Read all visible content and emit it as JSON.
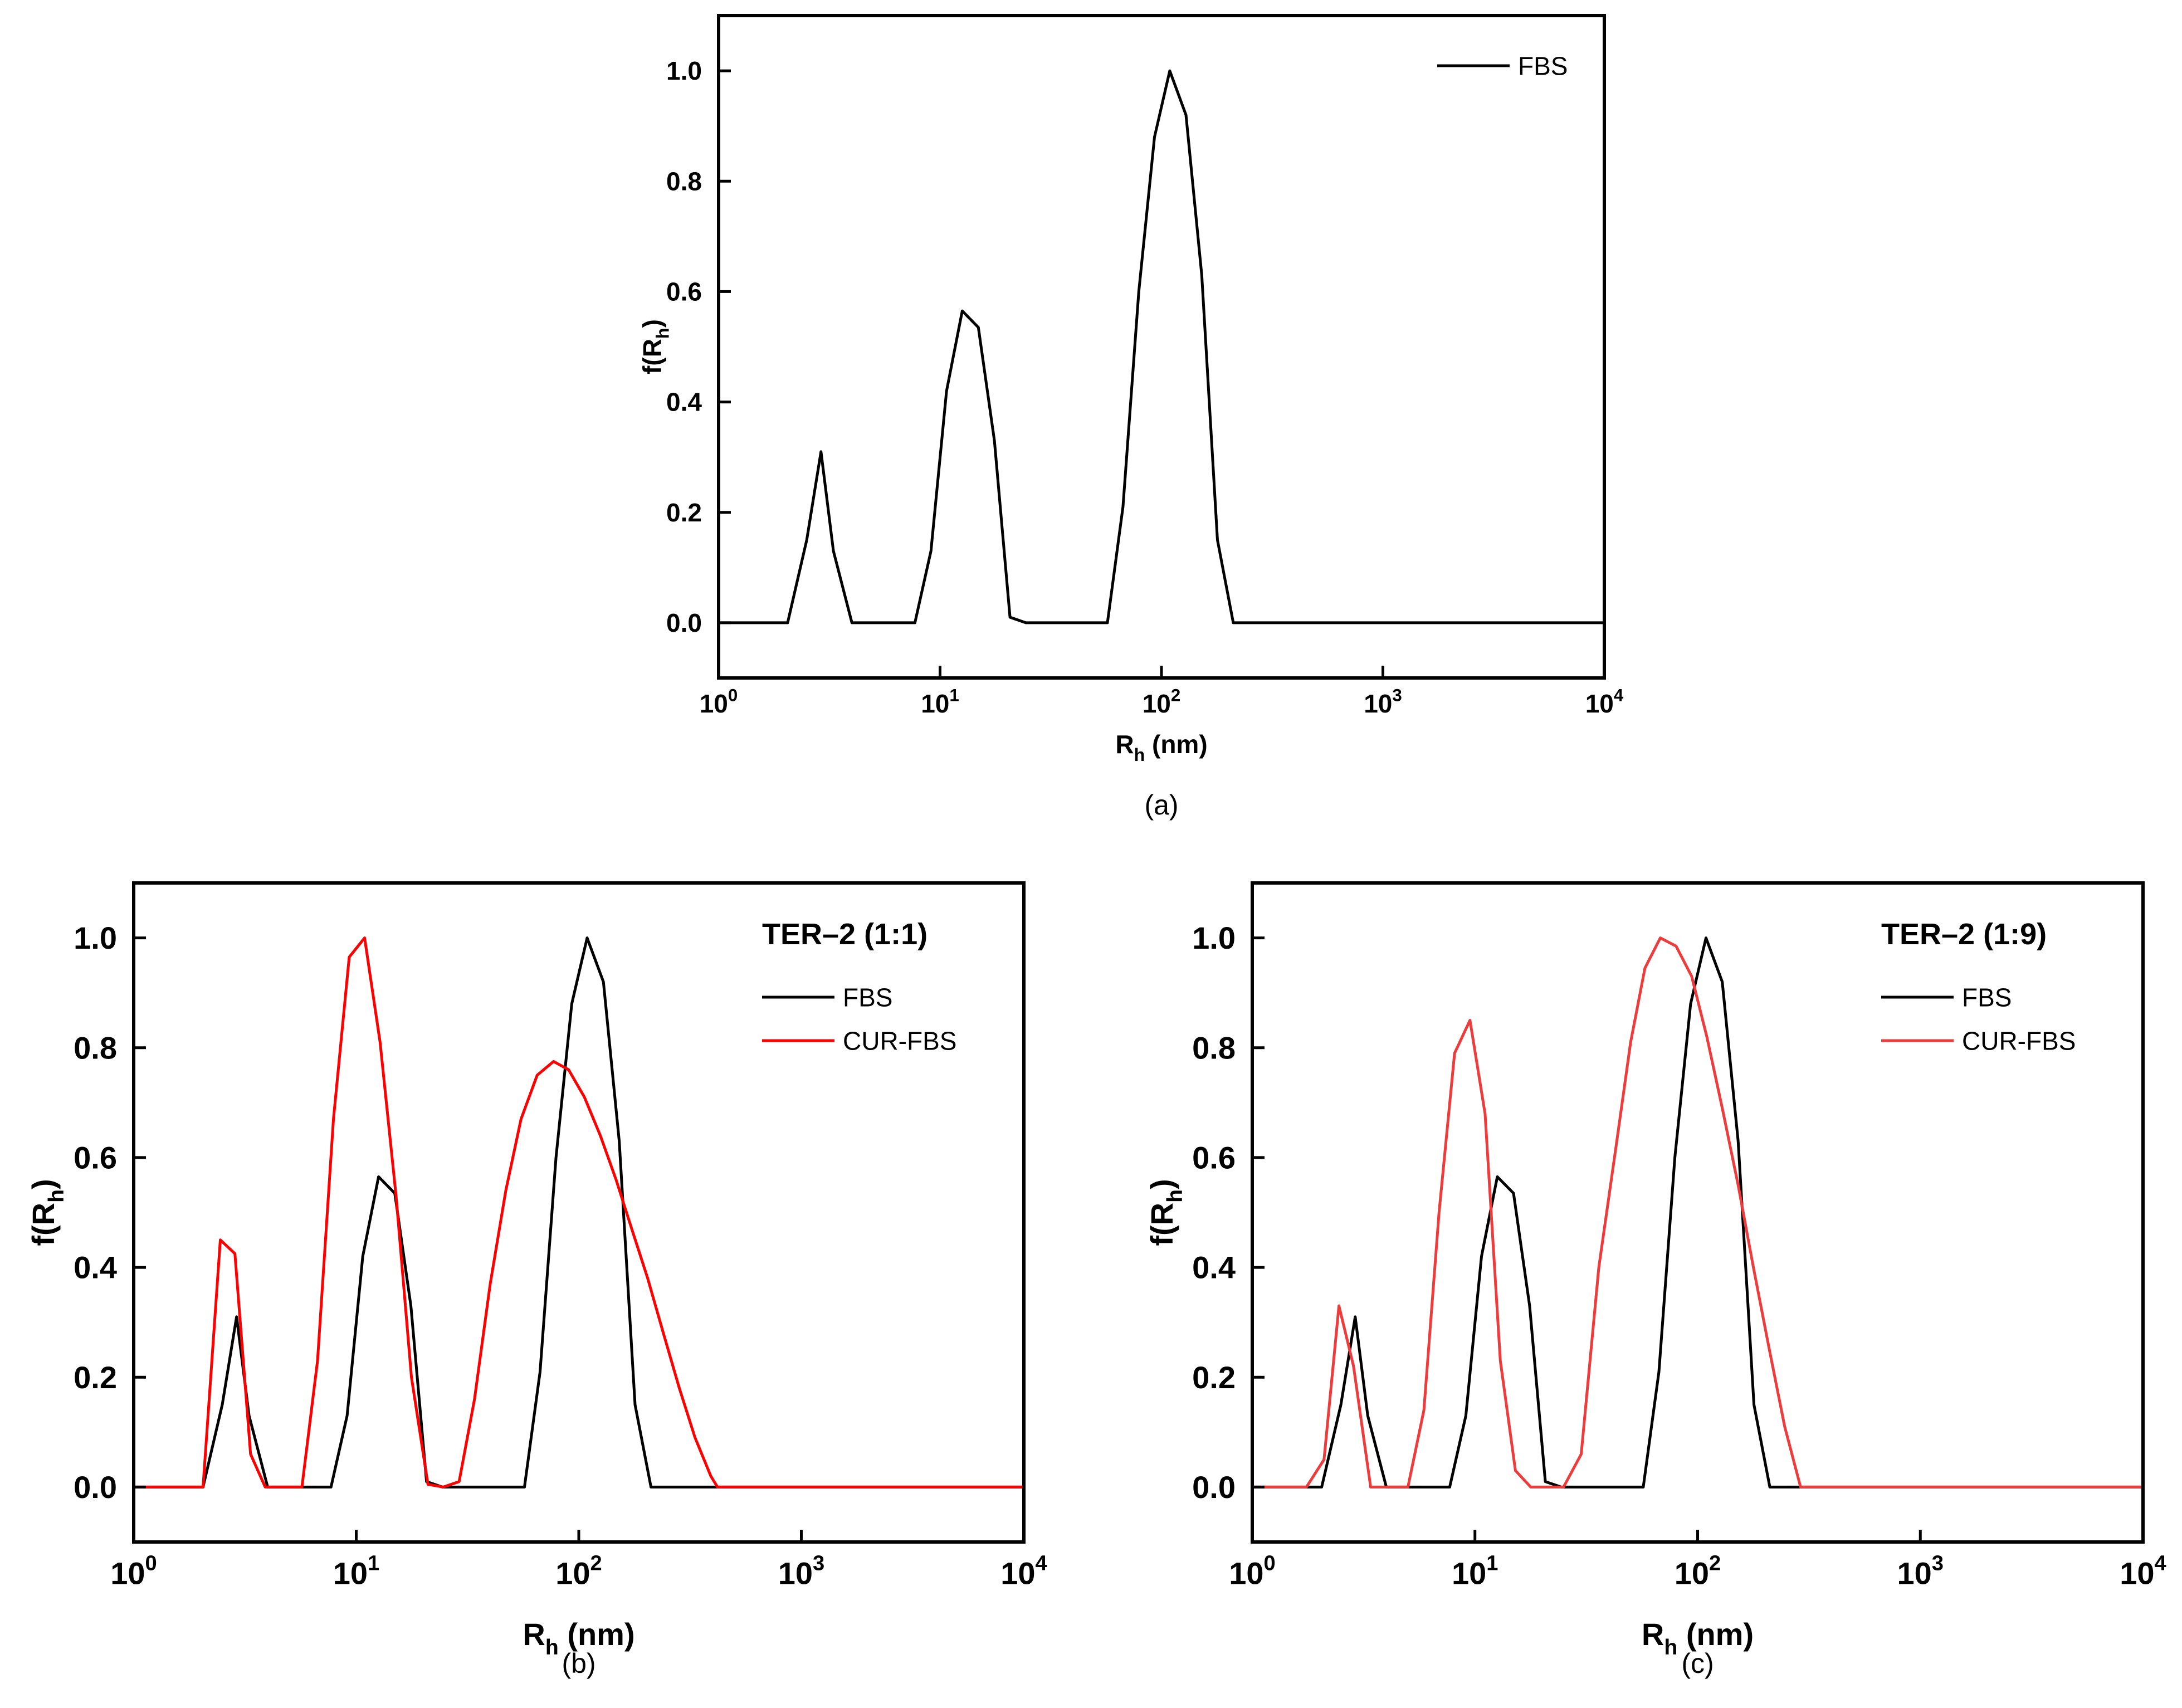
{
  "chart_data": [
    {
      "type": "line",
      "panel_label": "(a)",
      "title": "",
      "xlabel_main": "R",
      "xlabel_sub": "h",
      "xlabel_rest": " (nm)",
      "ylabel_main": "f(R",
      "ylabel_sub": "h",
      "ylabel_rest": ")",
      "x_scale": "log",
      "xlim": [
        1,
        10000
      ],
      "ylim": [
        -0.1,
        1.1
      ],
      "x_ticks": [
        {
          "base": "10",
          "exp": "0",
          "value": 1
        },
        {
          "base": "10",
          "exp": "1",
          "value": 10
        },
        {
          "base": "10",
          "exp": "2",
          "value": 100
        },
        {
          "base": "10",
          "exp": "3",
          "value": 1000
        },
        {
          "base": "10",
          "exp": "4",
          "value": 10000
        }
      ],
      "y_ticks": [
        "0.0",
        "0.2",
        "0.4",
        "0.6",
        "0.8",
        "1.0"
      ],
      "legend_title": "",
      "legend_position": "top-right",
      "series": [
        {
          "name": "FBS",
          "color": "#000000",
          "x": [
            1,
            2.05,
            2.5,
            2.9,
            3.3,
            4.0,
            7.7,
            9.1,
            10.7,
            12.6,
            14.9,
            17.6,
            20.7,
            24.4,
            57,
            67,
            79,
            93,
            109,
            129,
            152,
            179,
            211,
            10000
          ],
          "y": [
            0,
            0,
            0.15,
            0.31,
            0.13,
            0,
            0,
            0.13,
            0.42,
            0.565,
            0.535,
            0.33,
            0.01,
            0,
            0,
            0.21,
            0.6,
            0.88,
            1.0,
            0.92,
            0.63,
            0.15,
            0,
            0
          ]
        }
      ]
    },
    {
      "type": "line",
      "panel_label": "(b)",
      "title": "",
      "xlabel_main": "R",
      "xlabel_sub": "h",
      "xlabel_rest": " (nm)",
      "ylabel_main": "f(R",
      "ylabel_sub": "h",
      "ylabel_rest": ")",
      "x_scale": "log",
      "xlim": [
        1,
        10000
      ],
      "ylim": [
        -0.1,
        1.1
      ],
      "x_ticks": [
        {
          "base": "10",
          "exp": "0",
          "value": 1
        },
        {
          "base": "10",
          "exp": "1",
          "value": 10
        },
        {
          "base": "10",
          "exp": "2",
          "value": 100
        },
        {
          "base": "10",
          "exp": "3",
          "value": 1000
        },
        {
          "base": "10",
          "exp": "4",
          "value": 10000
        }
      ],
      "y_ticks": [
        "0.0",
        "0.2",
        "0.4",
        "0.6",
        "0.8",
        "1.0"
      ],
      "legend_title": "TER–2 (1:1)",
      "legend_position": "top-right",
      "series": [
        {
          "name": "FBS",
          "color": "#000000",
          "x": [
            1,
            2.05,
            2.5,
            2.9,
            3.3,
            4.0,
            7.7,
            9.1,
            10.7,
            12.6,
            14.9,
            17.6,
            20.7,
            24.4,
            57,
            67,
            79,
            93,
            109,
            129,
            152,
            179,
            211,
            10000
          ],
          "y": [
            0,
            0,
            0.15,
            0.31,
            0.13,
            0,
            0,
            0.13,
            0.42,
            0.565,
            0.535,
            0.33,
            0.01,
            0,
            0,
            0.21,
            0.6,
            0.88,
            1.0,
            0.92,
            0.63,
            0.15,
            0,
            0
          ]
        },
        {
          "name": "CUR-FBS",
          "color": "#ff0000",
          "x": [
            1,
            2.05,
            2.45,
            2.85,
            3.35,
            3.9,
            5.7,
            6.7,
            7.9,
            9.3,
            10.9,
            12.8,
            15.1,
            17.7,
            21,
            24.6,
            29,
            34,
            40,
            47,
            55,
            65,
            77,
            90,
            106,
            125,
            147,
            173,
            204,
            240,
            283,
            333,
            392,
            420,
            500,
            10000
          ],
          "y": [
            0,
            0,
            0.45,
            0.425,
            0.06,
            0,
            0,
            0.23,
            0.67,
            0.965,
            1.0,
            0.81,
            0.53,
            0.2,
            0.005,
            0,
            0.01,
            0.16,
            0.37,
            0.54,
            0.67,
            0.75,
            0.775,
            0.76,
            0.71,
            0.64,
            0.56,
            0.47,
            0.38,
            0.28,
            0.18,
            0.09,
            0.02,
            0,
            0,
            0
          ]
        }
      ]
    },
    {
      "type": "line",
      "panel_label": "(c)",
      "title": "",
      "xlabel_main": "R",
      "xlabel_sub": "h",
      "xlabel_rest": " (nm)",
      "ylabel_main": "f(R",
      "ylabel_sub": "h",
      "ylabel_rest": ")",
      "x_scale": "log",
      "xlim": [
        1,
        10000
      ],
      "ylim": [
        -0.1,
        1.1
      ],
      "x_ticks": [
        {
          "base": "10",
          "exp": "0",
          "value": 1
        },
        {
          "base": "10",
          "exp": "1",
          "value": 10
        },
        {
          "base": "10",
          "exp": "2",
          "value": 100
        },
        {
          "base": "10",
          "exp": "3",
          "value": 1000
        },
        {
          "base": "10",
          "exp": "4",
          "value": 10000
        }
      ],
      "y_ticks": [
        "0.0",
        "0.2",
        "0.4",
        "0.6",
        "0.8",
        "1.0"
      ],
      "legend_title": "TER–2 (1:9)",
      "legend_position": "top-right",
      "series": [
        {
          "name": "FBS",
          "color": "#000000",
          "x": [
            1,
            2.05,
            2.5,
            2.9,
            3.3,
            4.0,
            7.7,
            9.1,
            10.7,
            12.6,
            14.9,
            17.6,
            20.7,
            24.4,
            57,
            67,
            79,
            93,
            109,
            129,
            152,
            179,
            211,
            10000
          ],
          "y": [
            0,
            0,
            0.15,
            0.31,
            0.13,
            0,
            0,
            0.13,
            0.42,
            0.565,
            0.535,
            0.33,
            0.01,
            0,
            0,
            0.21,
            0.6,
            0.88,
            1.0,
            0.92,
            0.63,
            0.15,
            0,
            0
          ]
        },
        {
          "name": "CUR-FBS",
          "color": "#ee3b3b",
          "x": [
            1,
            1.75,
            2.1,
            2.45,
            2.85,
            3.4,
            5.0,
            5.9,
            6.9,
            8.1,
            9.5,
            11.1,
            13.0,
            15.2,
            17.8,
            25,
            30,
            36,
            43,
            50,
            58,
            68,
            80,
            94,
            110,
            129,
            152,
            178,
            210,
            246,
            290,
            10000
          ],
          "y": [
            0,
            0,
            0.05,
            0.33,
            0.22,
            0,
            0,
            0.14,
            0.5,
            0.79,
            0.85,
            0.68,
            0.23,
            0.03,
            0,
            0,
            0.06,
            0.4,
            0.62,
            0.81,
            0.945,
            1.0,
            0.985,
            0.93,
            0.82,
            0.69,
            0.55,
            0.4,
            0.25,
            0.11,
            0,
            0
          ]
        }
      ]
    }
  ]
}
